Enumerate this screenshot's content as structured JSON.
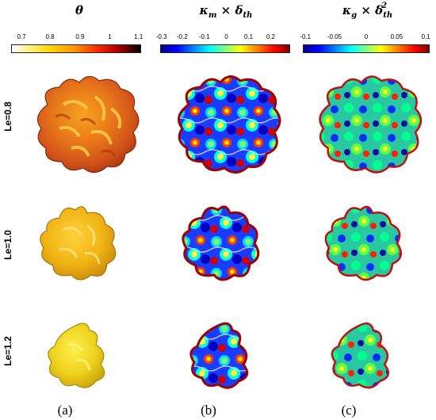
{
  "columns": [
    {
      "title_main": "θ",
      "title_sub": "",
      "title_sup": "",
      "title_tail": "",
      "ticks": [
        "0.7",
        "0.8",
        "0.9",
        "1",
        "1.1"
      ]
    },
    {
      "title_main": "κ",
      "title_sub": "m",
      "title_mid": " × δ",
      "title_sub2": "th",
      "title_sup": "",
      "ticks": [
        "-0.3",
        "-0.2",
        "-0.1",
        "0",
        "0.1",
        "0.2"
      ]
    },
    {
      "title_main": "κ",
      "title_sub": "g",
      "title_mid": " × δ",
      "title_sub2": "th",
      "title_sup": "2",
      "ticks": [
        "-0.1",
        "-0.05",
        "0",
        "0.05",
        "0.1"
      ]
    }
  ],
  "rows": [
    "Le=0.8",
    "Le=1.0",
    "Le=1.2"
  ],
  "panel_labels": [
    "(a)",
    "(b)",
    "(c)"
  ],
  "colors": {
    "theta_gradient": [
      "#ffffff",
      "#ffd700",
      "#ff3000",
      "#000000"
    ],
    "jet_gradient": [
      "#00008f",
      "#0000ff",
      "#00ffff",
      "#ffff00",
      "#ff0000",
      "#800000"
    ]
  }
}
